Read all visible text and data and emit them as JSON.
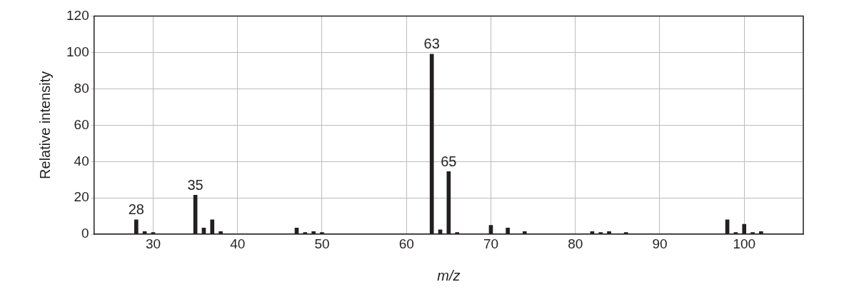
{
  "chart_data": {
    "type": "bar",
    "xlabel": "m/z",
    "ylabel": "Relative intensity",
    "color": "#231f20",
    "x": [
      28,
      29,
      30,
      35,
      36,
      37,
      38,
      47,
      48,
      49,
      50,
      63,
      64,
      65,
      66,
      70,
      72,
      74,
      82,
      83,
      84,
      86,
      98,
      99,
      100,
      101,
      102
    ],
    "values": [
      8,
      1.5,
      1,
      21.5,
      3.5,
      8,
      1.5,
      3.5,
      1,
      1.5,
      1,
      99,
      2.5,
      34.5,
      1,
      5,
      3.5,
      1.5,
      1.5,
      1,
      1.5,
      1,
      8,
      1,
      5.5,
      1,
      1.5
    ],
    "xlim": [
      23,
      107
    ],
    "xticks": [
      30,
      40,
      50,
      60,
      70,
      80,
      90,
      100
    ],
    "ylim": [
      0,
      120
    ],
    "yticks": [
      0,
      20,
      40,
      60,
      80,
      100,
      120
    ],
    "grid": true,
    "legend": false,
    "annotations": [
      {
        "text": "28",
        "x": 28,
        "y": 8
      },
      {
        "text": "35",
        "x": 35,
        "y": 21.5
      },
      {
        "text": "63",
        "x": 63,
        "y": 99
      },
      {
        "text": "65",
        "x": 65,
        "y": 34.5
      }
    ]
  }
}
